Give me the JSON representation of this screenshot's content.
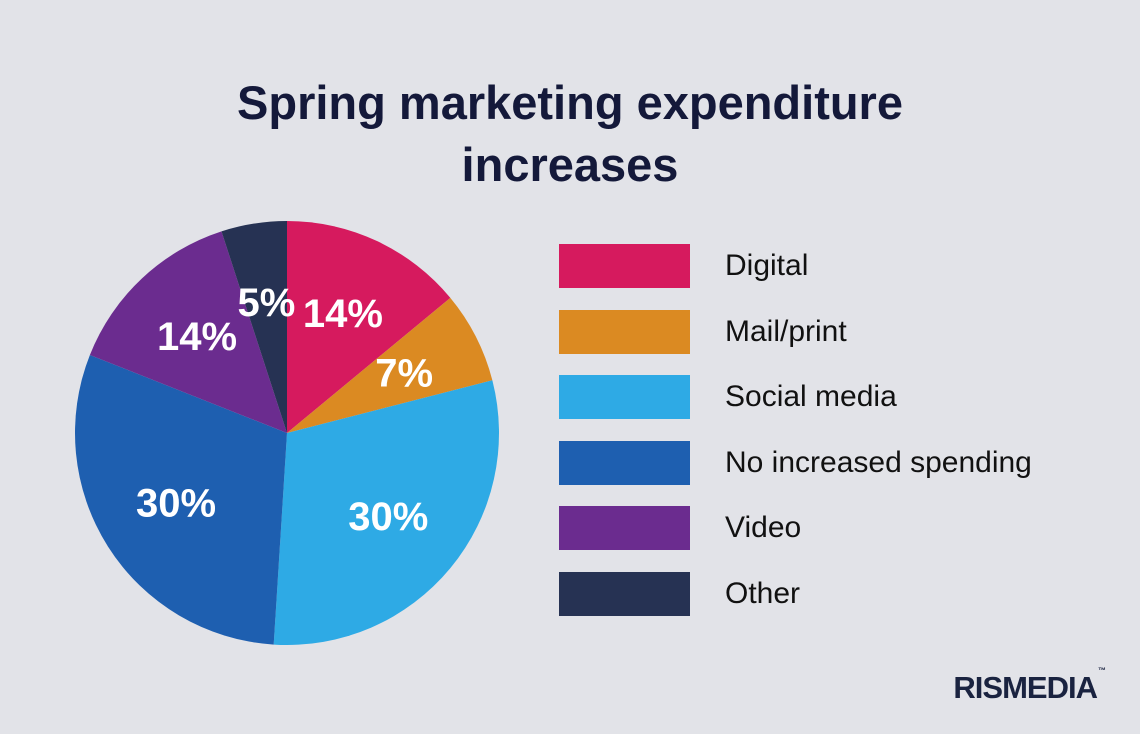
{
  "brand": "RISMEDIA",
  "brand_mark": "™",
  "chart_data": {
    "type": "pie",
    "title_lines": [
      "Spring marketing expenditure",
      "increases"
    ],
    "title": "Spring marketing expenditure increases",
    "legend_position": "right",
    "slices": [
      {
        "name": "Digital",
        "value": 14,
        "label": "14%",
        "color": "#d61a5e"
      },
      {
        "name": "Mail/print",
        "value": 7,
        "label": "7%",
        "color": "#db8a22"
      },
      {
        "name": "Social media",
        "value": 30,
        "label": "30%",
        "color": "#2eaae5"
      },
      {
        "name": "No increased spending",
        "value": 30,
        "label": "30%",
        "color": "#1e5fb0"
      },
      {
        "name": "Video",
        "value": 14,
        "label": "14%",
        "color": "#6b2c8f"
      },
      {
        "name": "Other",
        "value": 5,
        "label": "5%",
        "color": "#263253"
      }
    ]
  }
}
